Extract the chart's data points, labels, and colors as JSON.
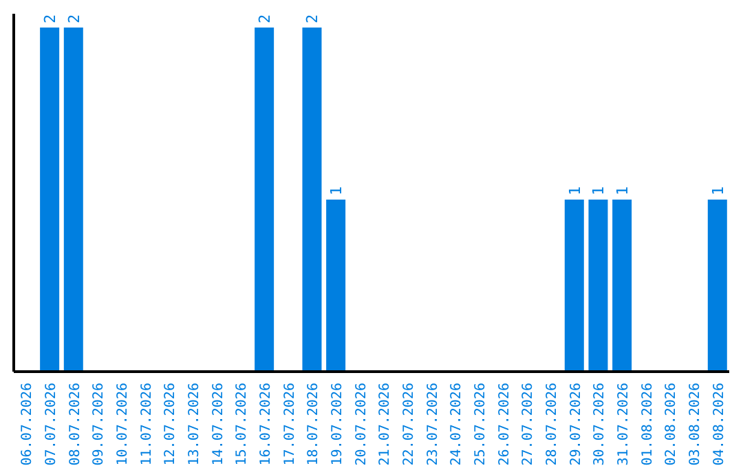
{
  "chart_data": {
    "type": "bar",
    "categories": [
      "06.07.2026",
      "07.07.2026",
      "08.07.2026",
      "09.07.2026",
      "10.07.2026",
      "11.07.2026",
      "12.07.2026",
      "13.07.2026",
      "14.07.2026",
      "15.07.2026",
      "16.07.2026",
      "17.07.2026",
      "18.07.2026",
      "19.07.2026",
      "20.07.2026",
      "21.07.2026",
      "22.07.2026",
      "23.07.2026",
      "24.07.2026",
      "25.07.2026",
      "26.07.2026",
      "27.07.2026",
      "28.07.2026",
      "29.07.2026",
      "30.07.2026",
      "31.07.2026",
      "01.08.2026",
      "02.08.2026",
      "03.08.2026",
      "04.08.2026"
    ],
    "values": [
      null,
      2,
      2,
      null,
      null,
      null,
      null,
      null,
      null,
      null,
      2,
      null,
      2,
      1,
      null,
      null,
      null,
      null,
      null,
      null,
      null,
      null,
      null,
      1,
      1,
      1,
      null,
      null,
      null,
      1
    ],
    "color": "#007fe0",
    "data_labels": true,
    "tick_labels": "x",
    "grid": false,
    "legend": false
  }
}
